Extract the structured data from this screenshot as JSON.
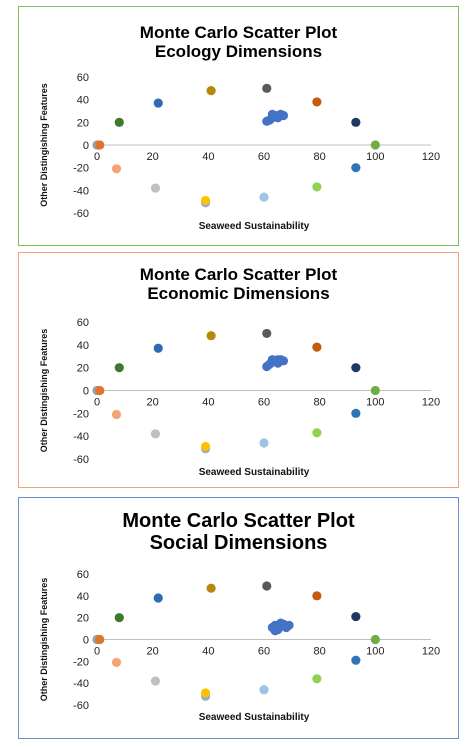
{
  "chart_data": [
    {
      "type": "scatter",
      "title_line1": "Monte Carlo Scatter Plot",
      "title_line2": "Ecology Dimensions",
      "border_color": "#7fbf5a",
      "xlabel": "Seaweed Sustainability",
      "ylabel": "Other Distingishing Features",
      "xlim": [
        0,
        120
      ],
      "ylim": [
        -60,
        60
      ],
      "xticks": [
        0,
        20,
        40,
        60,
        80,
        100,
        120
      ],
      "yticks": [
        60,
        40,
        20,
        0,
        -20,
        -40,
        -60
      ],
      "points": [
        {
          "x": 0,
          "y": 0,
          "color": "#9e9e9e"
        },
        {
          "x": 1,
          "y": 0,
          "color": "#e0732d"
        },
        {
          "x": 7,
          "y": -21,
          "color": "#f4a472"
        },
        {
          "x": 8,
          "y": 20,
          "color": "#3e7a2c"
        },
        {
          "x": 22,
          "y": 37,
          "color": "#2d6bb5"
        },
        {
          "x": 21,
          "y": -38,
          "color": "#c0c0c0"
        },
        {
          "x": 41,
          "y": 48,
          "color": "#b8860b"
        },
        {
          "x": 39,
          "y": -51,
          "color": "#8faadc"
        },
        {
          "x": 39,
          "y": -49,
          "color": "#ffc000"
        },
        {
          "x": 60,
          "y": -46,
          "color": "#9dc3e6"
        },
        {
          "x": 61,
          "y": 50,
          "color": "#595959"
        },
        {
          "x": 61,
          "y": 21,
          "color": "#4472c4"
        },
        {
          "x": 62,
          "y": 22,
          "color": "#4472c4"
        },
        {
          "x": 63,
          "y": 24,
          "color": "#4472c4"
        },
        {
          "x": 64,
          "y": 25,
          "color": "#4472c4"
        },
        {
          "x": 65,
          "y": 26,
          "color": "#4472c4"
        },
        {
          "x": 66,
          "y": 27,
          "color": "#4472c4"
        },
        {
          "x": 67,
          "y": 26,
          "color": "#4472c4"
        },
        {
          "x": 63,
          "y": 27,
          "color": "#4472c4"
        },
        {
          "x": 65,
          "y": 24,
          "color": "#4472c4"
        },
        {
          "x": 79,
          "y": 38,
          "color": "#c55a11"
        },
        {
          "x": 79,
          "y": -37,
          "color": "#92d050"
        },
        {
          "x": 93,
          "y": 20,
          "color": "#1f3864"
        },
        {
          "x": 93,
          "y": -20,
          "color": "#2e75b6"
        },
        {
          "x": 100,
          "y": 0,
          "color": "#70ad47"
        }
      ]
    },
    {
      "type": "scatter",
      "title_line1": "Monte Carlo Scatter Plot",
      "title_line2": "Economic Dimensions",
      "border_color": "#f4a472",
      "xlabel": "Seaweed Sustainability",
      "ylabel": "Other Distingishing Features",
      "xlim": [
        0,
        120
      ],
      "ylim": [
        -60,
        60
      ],
      "xticks": [
        0,
        20,
        40,
        60,
        80,
        100,
        120
      ],
      "yticks": [
        60,
        40,
        20,
        0,
        -20,
        -40,
        -60
      ],
      "points": [
        {
          "x": 0,
          "y": 0,
          "color": "#9e9e9e"
        },
        {
          "x": 1,
          "y": 0,
          "color": "#e0732d"
        },
        {
          "x": 7,
          "y": -21,
          "color": "#f4a472"
        },
        {
          "x": 8,
          "y": 20,
          "color": "#3e7a2c"
        },
        {
          "x": 22,
          "y": 37,
          "color": "#2d6bb5"
        },
        {
          "x": 21,
          "y": -38,
          "color": "#c0c0c0"
        },
        {
          "x": 41,
          "y": 48,
          "color": "#b8860b"
        },
        {
          "x": 39,
          "y": -51,
          "color": "#8faadc"
        },
        {
          "x": 39,
          "y": -49,
          "color": "#ffc000"
        },
        {
          "x": 60,
          "y": -46,
          "color": "#9dc3e6"
        },
        {
          "x": 61,
          "y": 50,
          "color": "#595959"
        },
        {
          "x": 61,
          "y": 21,
          "color": "#4472c4"
        },
        {
          "x": 62,
          "y": 23,
          "color": "#4472c4"
        },
        {
          "x": 63,
          "y": 25,
          "color": "#4472c4"
        },
        {
          "x": 64,
          "y": 26,
          "color": "#4472c4"
        },
        {
          "x": 65,
          "y": 27,
          "color": "#4472c4"
        },
        {
          "x": 66,
          "y": 27,
          "color": "#4472c4"
        },
        {
          "x": 67,
          "y": 26,
          "color": "#4472c4"
        },
        {
          "x": 63,
          "y": 27,
          "color": "#4472c4"
        },
        {
          "x": 65,
          "y": 24,
          "color": "#4472c4"
        },
        {
          "x": 79,
          "y": 38,
          "color": "#c55a11"
        },
        {
          "x": 79,
          "y": -37,
          "color": "#92d050"
        },
        {
          "x": 93,
          "y": 20,
          "color": "#1f3864"
        },
        {
          "x": 93,
          "y": -20,
          "color": "#2e75b6"
        },
        {
          "x": 100,
          "y": 0,
          "color": "#70ad47"
        }
      ]
    },
    {
      "type": "scatter",
      "title_line1": "Monte Carlo Scatter Plot",
      "title_line2": "Social Dimensions",
      "border_color": "#6f8fc9",
      "xlabel": "Seaweed Sustainability",
      "ylabel": "Other Distingishing Features",
      "xlim": [
        0,
        120
      ],
      "ylim": [
        -60,
        60
      ],
      "xticks": [
        0,
        20,
        40,
        60,
        80,
        100,
        120
      ],
      "yticks": [
        60,
        40,
        20,
        0,
        -20,
        -40,
        -60
      ],
      "points": [
        {
          "x": 0,
          "y": 0,
          "color": "#9e9e9e"
        },
        {
          "x": 1,
          "y": 0,
          "color": "#e0732d"
        },
        {
          "x": 7,
          "y": -21,
          "color": "#f4a472"
        },
        {
          "x": 8,
          "y": 20,
          "color": "#3e7a2c"
        },
        {
          "x": 22,
          "y": 38,
          "color": "#2d6bb5"
        },
        {
          "x": 21,
          "y": -38,
          "color": "#c0c0c0"
        },
        {
          "x": 41,
          "y": 47,
          "color": "#b8860b"
        },
        {
          "x": 39,
          "y": -52,
          "color": "#8faadc"
        },
        {
          "x": 39,
          "y": -49,
          "color": "#ffc000"
        },
        {
          "x": 60,
          "y": -46,
          "color": "#9dc3e6"
        },
        {
          "x": 61,
          "y": 49,
          "color": "#595959"
        },
        {
          "x": 63,
          "y": 11,
          "color": "#4472c4"
        },
        {
          "x": 64,
          "y": 13,
          "color": "#4472c4"
        },
        {
          "x": 65,
          "y": 9,
          "color": "#4472c4"
        },
        {
          "x": 66,
          "y": 12,
          "color": "#4472c4"
        },
        {
          "x": 67,
          "y": 14,
          "color": "#4472c4"
        },
        {
          "x": 68,
          "y": 11,
          "color": "#4472c4"
        },
        {
          "x": 69,
          "y": 13,
          "color": "#4472c4"
        },
        {
          "x": 66,
          "y": 15,
          "color": "#4472c4"
        },
        {
          "x": 64,
          "y": 8,
          "color": "#4472c4"
        },
        {
          "x": 79,
          "y": 40,
          "color": "#c55a11"
        },
        {
          "x": 79,
          "y": -36,
          "color": "#92d050"
        },
        {
          "x": 93,
          "y": 21,
          "color": "#1f3864"
        },
        {
          "x": 93,
          "y": -19,
          "color": "#2e75b6"
        },
        {
          "x": 100,
          "y": 0,
          "color": "#70ad47"
        }
      ]
    }
  ]
}
